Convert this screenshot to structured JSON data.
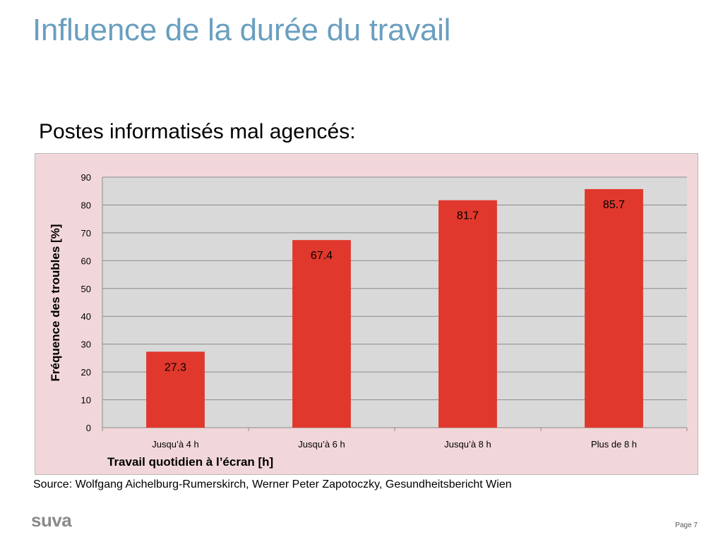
{
  "slide": {
    "title": "Influence de la durée du travail",
    "subtitle": "Postes informatisés mal agencés:",
    "source": "Source: Wolfgang Aichelburg-Rumerskirch, Werner Peter Zapotoczky, Gesundheitsbericht Wien",
    "logo": "suva",
    "page": "Page 7"
  },
  "colors": {
    "title": "#6a9fc0",
    "bar": "#e0382c",
    "plot_background": "#d9d9d9",
    "chart_background": "#f2d7da",
    "gridline": "#8c8c8c"
  },
  "chart_data": {
    "type": "bar",
    "categories": [
      "Jusqu’à 4 h",
      "Jusqu’à 6 h",
      "Jusqu’à 8 h",
      "Plus de 8 h"
    ],
    "values": [
      27.3,
      67.4,
      81.7,
      85.7
    ],
    "data_labels": [
      "27.3",
      "67.4",
      "81.7",
      "85.7"
    ],
    "xlabel": "Travail quotidien à l’écran [h]",
    "ylabel": "Fréquence des troubles [%]",
    "ylim": [
      0,
      90
    ],
    "yticks": [
      0,
      10,
      20,
      30,
      40,
      50,
      60,
      70,
      80,
      90
    ],
    "grid": true,
    "legend": "none"
  }
}
